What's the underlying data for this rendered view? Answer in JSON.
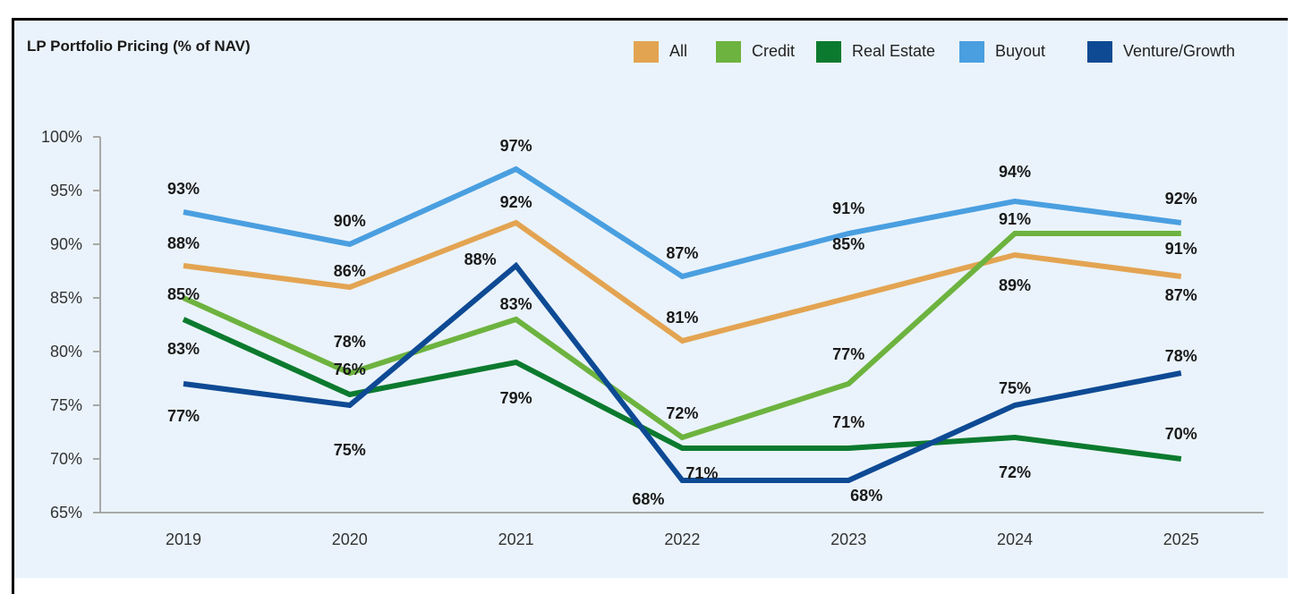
{
  "chart_data": {
    "type": "line",
    "title": "LP Portfolio Pricing (% of NAV)",
    "xlabel": "",
    "ylabel": "",
    "categories": [
      "2019",
      "2020",
      "2021",
      "2022",
      "2023",
      "2024",
      "2025"
    ],
    "ylim": [
      65,
      100
    ],
    "yticks": [
      100,
      95,
      90,
      85,
      80,
      75,
      70,
      65
    ],
    "ytick_labels": [
      "100%",
      "95%",
      "90%",
      "85%",
      "80%",
      "75%",
      "70%",
      "65%"
    ],
    "grid": false,
    "legend": "top-right",
    "series": [
      {
        "name": "All",
        "color": "#E3A452",
        "values": [
          88,
          86,
          92,
          81,
          85,
          89,
          87
        ],
        "labels": [
          "88%",
          "86%",
          "92%",
          "81%",
          "85%",
          "89%",
          "87%"
        ]
      },
      {
        "name": "Credit",
        "color": "#6DB33F",
        "values": [
          85,
          78,
          83,
          72,
          77,
          91,
          91
        ],
        "labels": [
          "85%",
          "78%",
          "83%",
          "72%",
          "77%",
          "91%",
          "91%"
        ]
      },
      {
        "name": "Real Estate",
        "color": "#0B7A2E",
        "values": [
          83,
          76,
          79,
          71,
          71,
          72,
          70
        ],
        "labels": [
          "83%",
          "76%",
          "79%",
          "71%",
          "71%",
          "72%",
          "70%"
        ]
      },
      {
        "name": "Buyout",
        "color": "#4A9FE0",
        "values": [
          93,
          90,
          97,
          87,
          91,
          94,
          92
        ],
        "labels": [
          "93%",
          "90%",
          "97%",
          "87%",
          "91%",
          "94%",
          "92%"
        ]
      },
      {
        "name": "Venture/Growth",
        "color": "#0E4A94",
        "values": [
          77,
          75,
          88,
          68,
          68,
          75,
          78
        ],
        "labels": [
          "77%",
          "75%",
          "88%",
          "68%",
          "68%",
          "75%",
          "78%"
        ]
      }
    ]
  }
}
